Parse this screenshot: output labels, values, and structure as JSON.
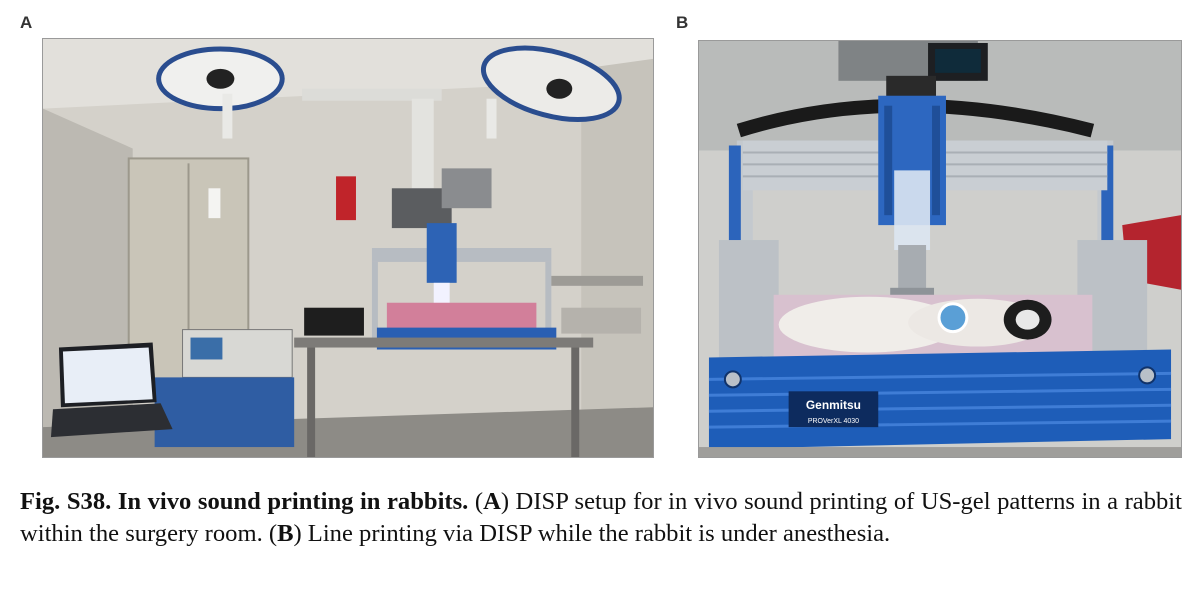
{
  "figure": {
    "panel_a_label": "A",
    "panel_b_label": "B",
    "caption": {
      "fig_label": "Fig. S38.",
      "fig_title": "In vivo sound printing in rabbits.",
      "part_a_open": " (",
      "part_a_letter": "A",
      "part_a_text": ") DISP setup for in vivo sound printing of US-gel patterns in a rabbit within the surgery room. (",
      "part_b_letter": "B",
      "part_b_text": ") Line printing via DISP while the rabbit is under anesthesia."
    }
  },
  "photo_b": {
    "machine_brand": "Genmitsu",
    "machine_model": "PROVerXL 4030"
  },
  "colors": {
    "frame_blue": "#1f5fb8",
    "aluminum": "#c7ccd1",
    "towel_pink": "#d98fa6",
    "wall": "#d6d3cc"
  }
}
